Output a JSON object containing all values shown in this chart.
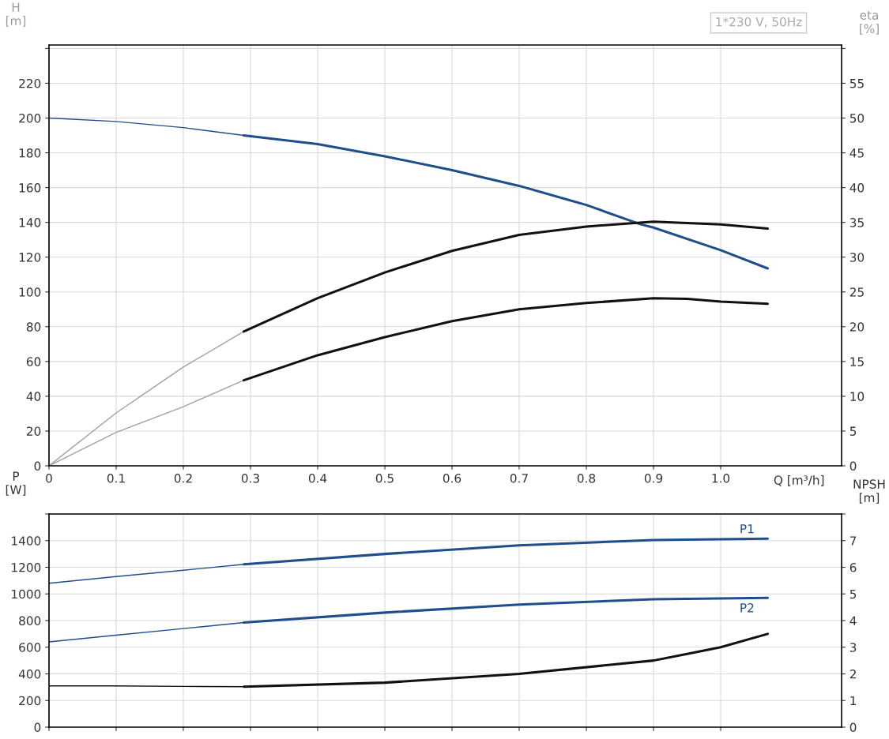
{
  "chart_data": [
    {
      "type": "line",
      "xlabel": "Q [m³/h]",
      "ylabel": "H\n[m]",
      "y2label": "eta\n[%]",
      "annotations": [
        "1*230 V, 50Hz"
      ],
      "grid": true,
      "legend": false,
      "marker": "none",
      "line_style": "solid",
      "xlim": [
        0,
        1.18
      ],
      "xticks": [
        0,
        0.1,
        0.2,
        0.3,
        0.4,
        0.5,
        0.6,
        0.7,
        0.8,
        0.9,
        {
          "value": 1.0,
          "label": "1.0"
        }
      ],
      "ylim": [
        0,
        242
      ],
      "yticks": [
        0,
        20,
        40,
        60,
        80,
        100,
        120,
        140,
        160,
        180,
        200,
        220,
        {
          "value": 240,
          "label": null
        }
      ],
      "y2lim": [
        0,
        60.5
      ],
      "y2ticks": [
        0,
        5,
        10,
        15,
        20,
        25,
        30,
        35,
        40,
        45,
        50,
        55,
        {
          "value": 60,
          "label": null
        }
      ],
      "series": [
        {
          "color": "#1f4e8c",
          "x": [
            0,
            0.1,
            0.2,
            0.29
          ],
          "values": [
            200,
            198,
            194.5,
            190
          ]
        },
        {
          "color": "#1f4e8c",
          "x": [
            0.29,
            0.4,
            0.5,
            0.6,
            0.7,
            0.8,
            0.88,
            0.9,
            1.0,
            1.07
          ],
          "values": [
            190,
            185,
            178,
            170,
            161,
            150,
            139,
            137,
            124,
            113.5
          ]
        },
        {
          "color": "#a0a0a0",
          "axis": "y2",
          "x": [
            0,
            0.1,
            0.2,
            0.29
          ],
          "values": [
            0,
            7.6,
            14.2,
            19.3
          ]
        },
        {
          "color": "#111111",
          "axis": "y2",
          "x": [
            0.29,
            0.4,
            0.5,
            0.6,
            0.7,
            0.8,
            0.9,
            1.0,
            1.07
          ],
          "values": [
            19.3,
            24.1,
            27.8,
            30.9,
            33.2,
            34.4,
            35.1,
            34.7,
            34.1
          ]
        },
        {
          "color": "#a0a0a0",
          "axis": "y2",
          "x": [
            0,
            0.1,
            0.2,
            0.29
          ],
          "values": [
            0,
            4.8,
            8.5,
            12.3
          ]
        },
        {
          "color": "#111111",
          "axis": "y2",
          "x": [
            0.29,
            0.4,
            0.5,
            0.6,
            0.7,
            0.8,
            0.9,
            0.95,
            1.0,
            1.07
          ],
          "values": [
            12.3,
            15.9,
            18.5,
            20.8,
            22.5,
            23.4,
            24.1,
            24.0,
            23.6,
            23.3
          ]
        }
      ]
    },
    {
      "type": "line",
      "ylabel": "P\n[W]",
      "y2label": "NPSH\n[m]",
      "grid": true,
      "legend": false,
      "marker": "none",
      "line_style": "solid",
      "tick_labels": "y",
      "xlim": [
        0,
        1.18
      ],
      "xticks": [
        0,
        0.1,
        0.2,
        0.3,
        0.4,
        0.5,
        0.6,
        0.7,
        0.8,
        0.9,
        1.0
      ],
      "ylim": [
        0,
        1600
      ],
      "yticks": [
        0,
        200,
        400,
        600,
        800,
        1000,
        1200,
        1400,
        {
          "value": 1600,
          "label": null
        }
      ],
      "y2lim": [
        0,
        8
      ],
      "y2ticks": [
        0,
        1,
        2,
        3,
        4,
        5,
        6,
        7,
        {
          "value": 8,
          "label": null
        }
      ],
      "series": [
        {
          "color": "#1f4e8c",
          "x": [
            0,
            0.1,
            0.2,
            0.29
          ],
          "values": [
            1080,
            1130,
            1178,
            1222
          ]
        },
        {
          "name": "P1",
          "color": "#1f4e8c",
          "x": [
            0.29,
            0.5,
            0.7,
            0.9,
            1.07
          ],
          "values": [
            1222,
            1300,
            1365,
            1405,
            1415
          ]
        },
        {
          "color": "#1f4e8c",
          "x": [
            0,
            0.1,
            0.2,
            0.29
          ],
          "values": [
            640,
            690,
            740,
            785
          ]
        },
        {
          "name": "P2",
          "color": "#1f4e8c",
          "x": [
            0.29,
            0.5,
            0.7,
            0.9,
            1.07
          ],
          "values": [
            785,
            860,
            920,
            960,
            970
          ]
        },
        {
          "color": "#111111",
          "axis": "y2",
          "x": [
            0,
            0.1,
            0.2,
            0.29
          ],
          "values": [
            1.55,
            1.55,
            1.53,
            1.52
          ]
        },
        {
          "color": "#111111",
          "axis": "y2",
          "x": [
            0.29,
            0.5,
            0.7,
            0.9,
            0.95,
            1.0,
            1.07
          ],
          "values": [
            1.52,
            1.67,
            2.0,
            2.5,
            2.75,
            3.0,
            3.5
          ]
        }
      ]
    }
  ]
}
